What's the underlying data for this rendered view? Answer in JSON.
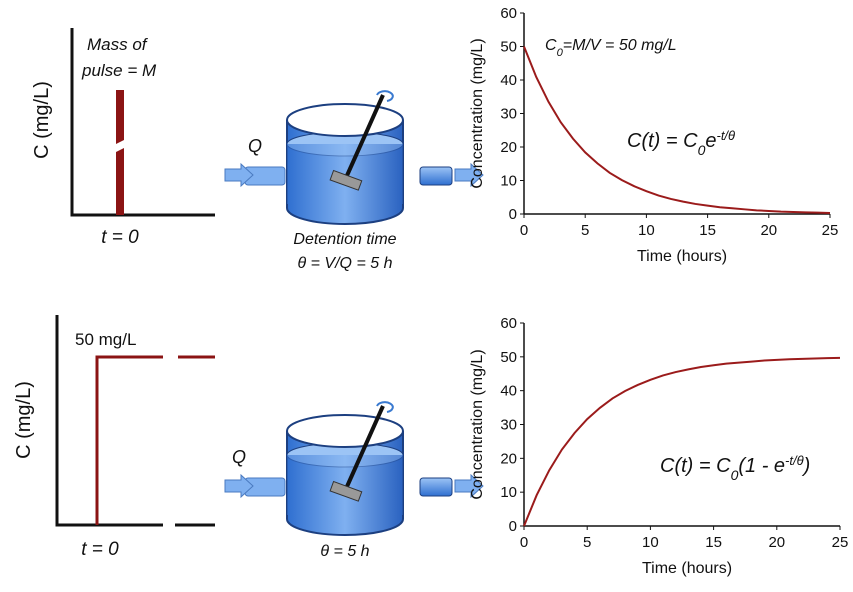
{
  "chart_data": [
    {
      "type": "line",
      "y_label": "Concentration (mg/L)",
      "x_label": "Time (hours)",
      "x": [
        0,
        1,
        2,
        3,
        4,
        5,
        6,
        7,
        8,
        9,
        10,
        11,
        12,
        13,
        14,
        15,
        16,
        17,
        18,
        19,
        20,
        21,
        22,
        23,
        24,
        25
      ],
      "values": [
        50,
        40.9,
        33.5,
        27.4,
        22.5,
        18.4,
        15.1,
        12.3,
        10.1,
        8.3,
        6.8,
        5.5,
        4.5,
        3.7,
        3.0,
        2.5,
        2.0,
        1.7,
        1.4,
        1.1,
        0.9,
        0.7,
        0.6,
        0.5,
        0.4,
        0.3
      ],
      "color": "#9b1b1b",
      "xlim": [
        0,
        25
      ],
      "ylim": [
        0,
        60
      ],
      "xticks": [
        0,
        5,
        10,
        15,
        20,
        25
      ],
      "yticks": [
        0,
        10,
        20,
        30,
        40,
        50,
        60
      ],
      "annotations": [
        [
          "C",
          "0",
          "=M/V = 50 mg/L"
        ],
        [
          "C(t) = C",
          "0",
          "e",
          "-t/θ"
        ]
      ]
    },
    {
      "type": "line",
      "y_label": "Concentration (mg/L)",
      "x_label": "Time (hours)",
      "x": [
        0,
        1,
        2,
        3,
        4,
        5,
        6,
        7,
        8,
        9,
        10,
        11,
        12,
        13,
        14,
        15,
        16,
        17,
        18,
        19,
        20,
        21,
        22,
        23,
        24,
        25
      ],
      "values": [
        0,
        9.1,
        16.5,
        22.6,
        27.5,
        31.6,
        34.9,
        37.7,
        39.9,
        41.7,
        43.2,
        44.5,
        45.5,
        46.3,
        47.0,
        47.5,
        48.0,
        48.3,
        48.6,
        48.9,
        49.1,
        49.3,
        49.4,
        49.5,
        49.6,
        49.7
      ],
      "color": "#9b1b1b",
      "xlim": [
        0,
        25
      ],
      "ylim": [
        0,
        60
      ],
      "xticks": [
        0,
        5,
        10,
        15,
        20,
        25
      ],
      "yticks": [
        0,
        10,
        20,
        30,
        40,
        50,
        60
      ],
      "annotations": [
        [
          "C(t) = C",
          "0",
          "(1 -  e",
          "-t/θ",
          ")"
        ]
      ]
    }
  ],
  "pulse_sketch": {
    "y_label": "C (mg/L)",
    "note": [
      "Mass of",
      "pulse = M"
    ],
    "t_label": "t = 0"
  },
  "step_sketch": {
    "y_label": "C (mg/L)",
    "level_label": "50 mg/L",
    "t_label": "t = 0"
  },
  "tank_top": {
    "flow": "Q",
    "caption": [
      "Detention time",
      "θ = V/Q = 5 h"
    ]
  },
  "tank_bottom": {
    "flow": "Q",
    "caption": [
      "θ = 5 h"
    ]
  }
}
